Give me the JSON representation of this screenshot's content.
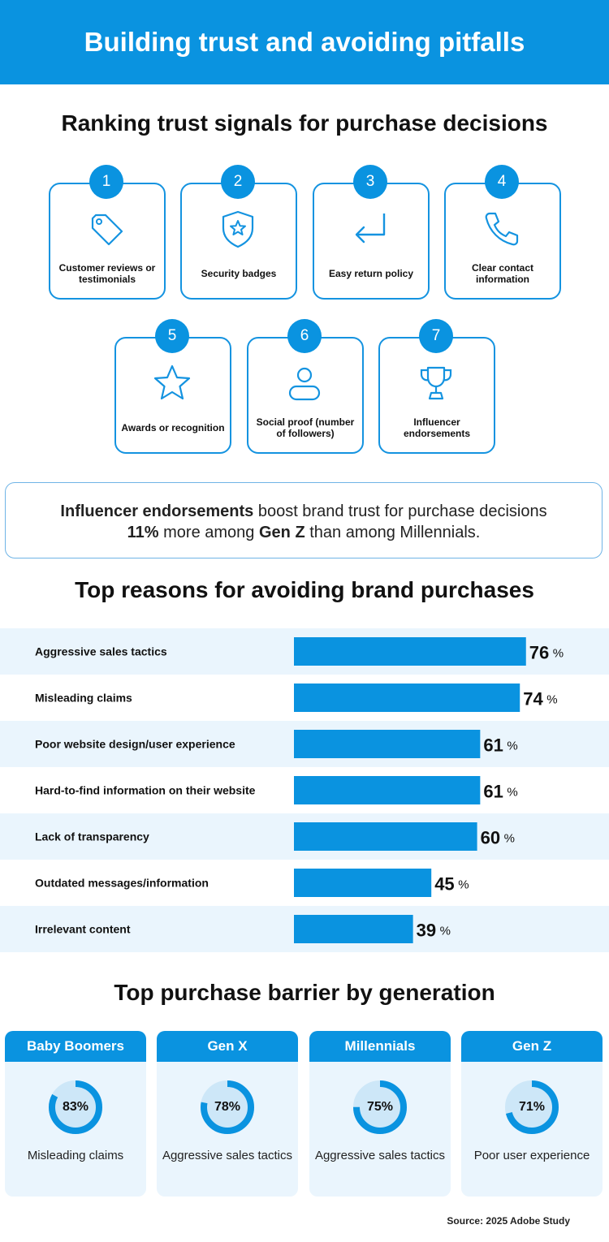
{
  "colors": {
    "brand_blue": "#0a93e0",
    "bar_blue": "#0a93e0",
    "light_band": "#eaf5fd",
    "ring_track": "#cde7f8"
  },
  "header": {
    "title": "Building trust and avoiding pitfalls"
  },
  "signals": {
    "title": "Ranking trust signals for purchase decisions",
    "items": [
      {
        "rank": "1",
        "label": "Customer reviews or testimonials",
        "icon": "tag-icon"
      },
      {
        "rank": "2",
        "label": "Security badges",
        "icon": "shield-star-icon"
      },
      {
        "rank": "3",
        "label": "Easy return policy",
        "icon": "return-arrow-icon"
      },
      {
        "rank": "4",
        "label": "Clear contact information",
        "icon": "phone-icon"
      },
      {
        "rank": "5",
        "label": "Awards or recognition",
        "icon": "star-icon"
      },
      {
        "rank": "6",
        "label": "Social proof (number of followers)",
        "icon": "person-icon"
      },
      {
        "rank": "7",
        "label": "Influencer endorsements",
        "icon": "trophy-icon"
      }
    ]
  },
  "callout": {
    "bold1": "Influencer endorsements",
    "text1": " boost brand trust for purchase decisions",
    "bold2": "11%",
    "text2": " more among ",
    "bold3": "Gen Z",
    "text3": " than among Millennials."
  },
  "chart_data": [
    {
      "type": "bar",
      "orientation": "horizontal",
      "title": "Top reasons for avoiding brand purchases",
      "categories": [
        "Aggressive sales tactics",
        "Misleading claims",
        "Poor website design/user experience",
        "Hard-to-find information on their website",
        "Lack of transparency",
        "Outdated messages/information",
        "Irrelevant content"
      ],
      "values": [
        76,
        74,
        61,
        61,
        60,
        45,
        39
      ],
      "unit": "%",
      "xlim": [
        0,
        100
      ],
      "grid": false
    },
    {
      "type": "pie",
      "subtype": "donut",
      "title": "Top purchase barrier by generation",
      "categories": [
        "Baby Boomers",
        "Gen X",
        "Millennials",
        "Gen Z"
      ],
      "values": [
        83,
        78,
        75,
        71
      ],
      "value_labels": [
        "83%",
        "78%",
        "75%",
        "71%"
      ],
      "descriptions": [
        "Misleading claims",
        "Aggressive sales tactics",
        "Aggressive sales tactics",
        "Poor user experience"
      ]
    }
  ],
  "source": "Source: 2025 Adobe Study"
}
